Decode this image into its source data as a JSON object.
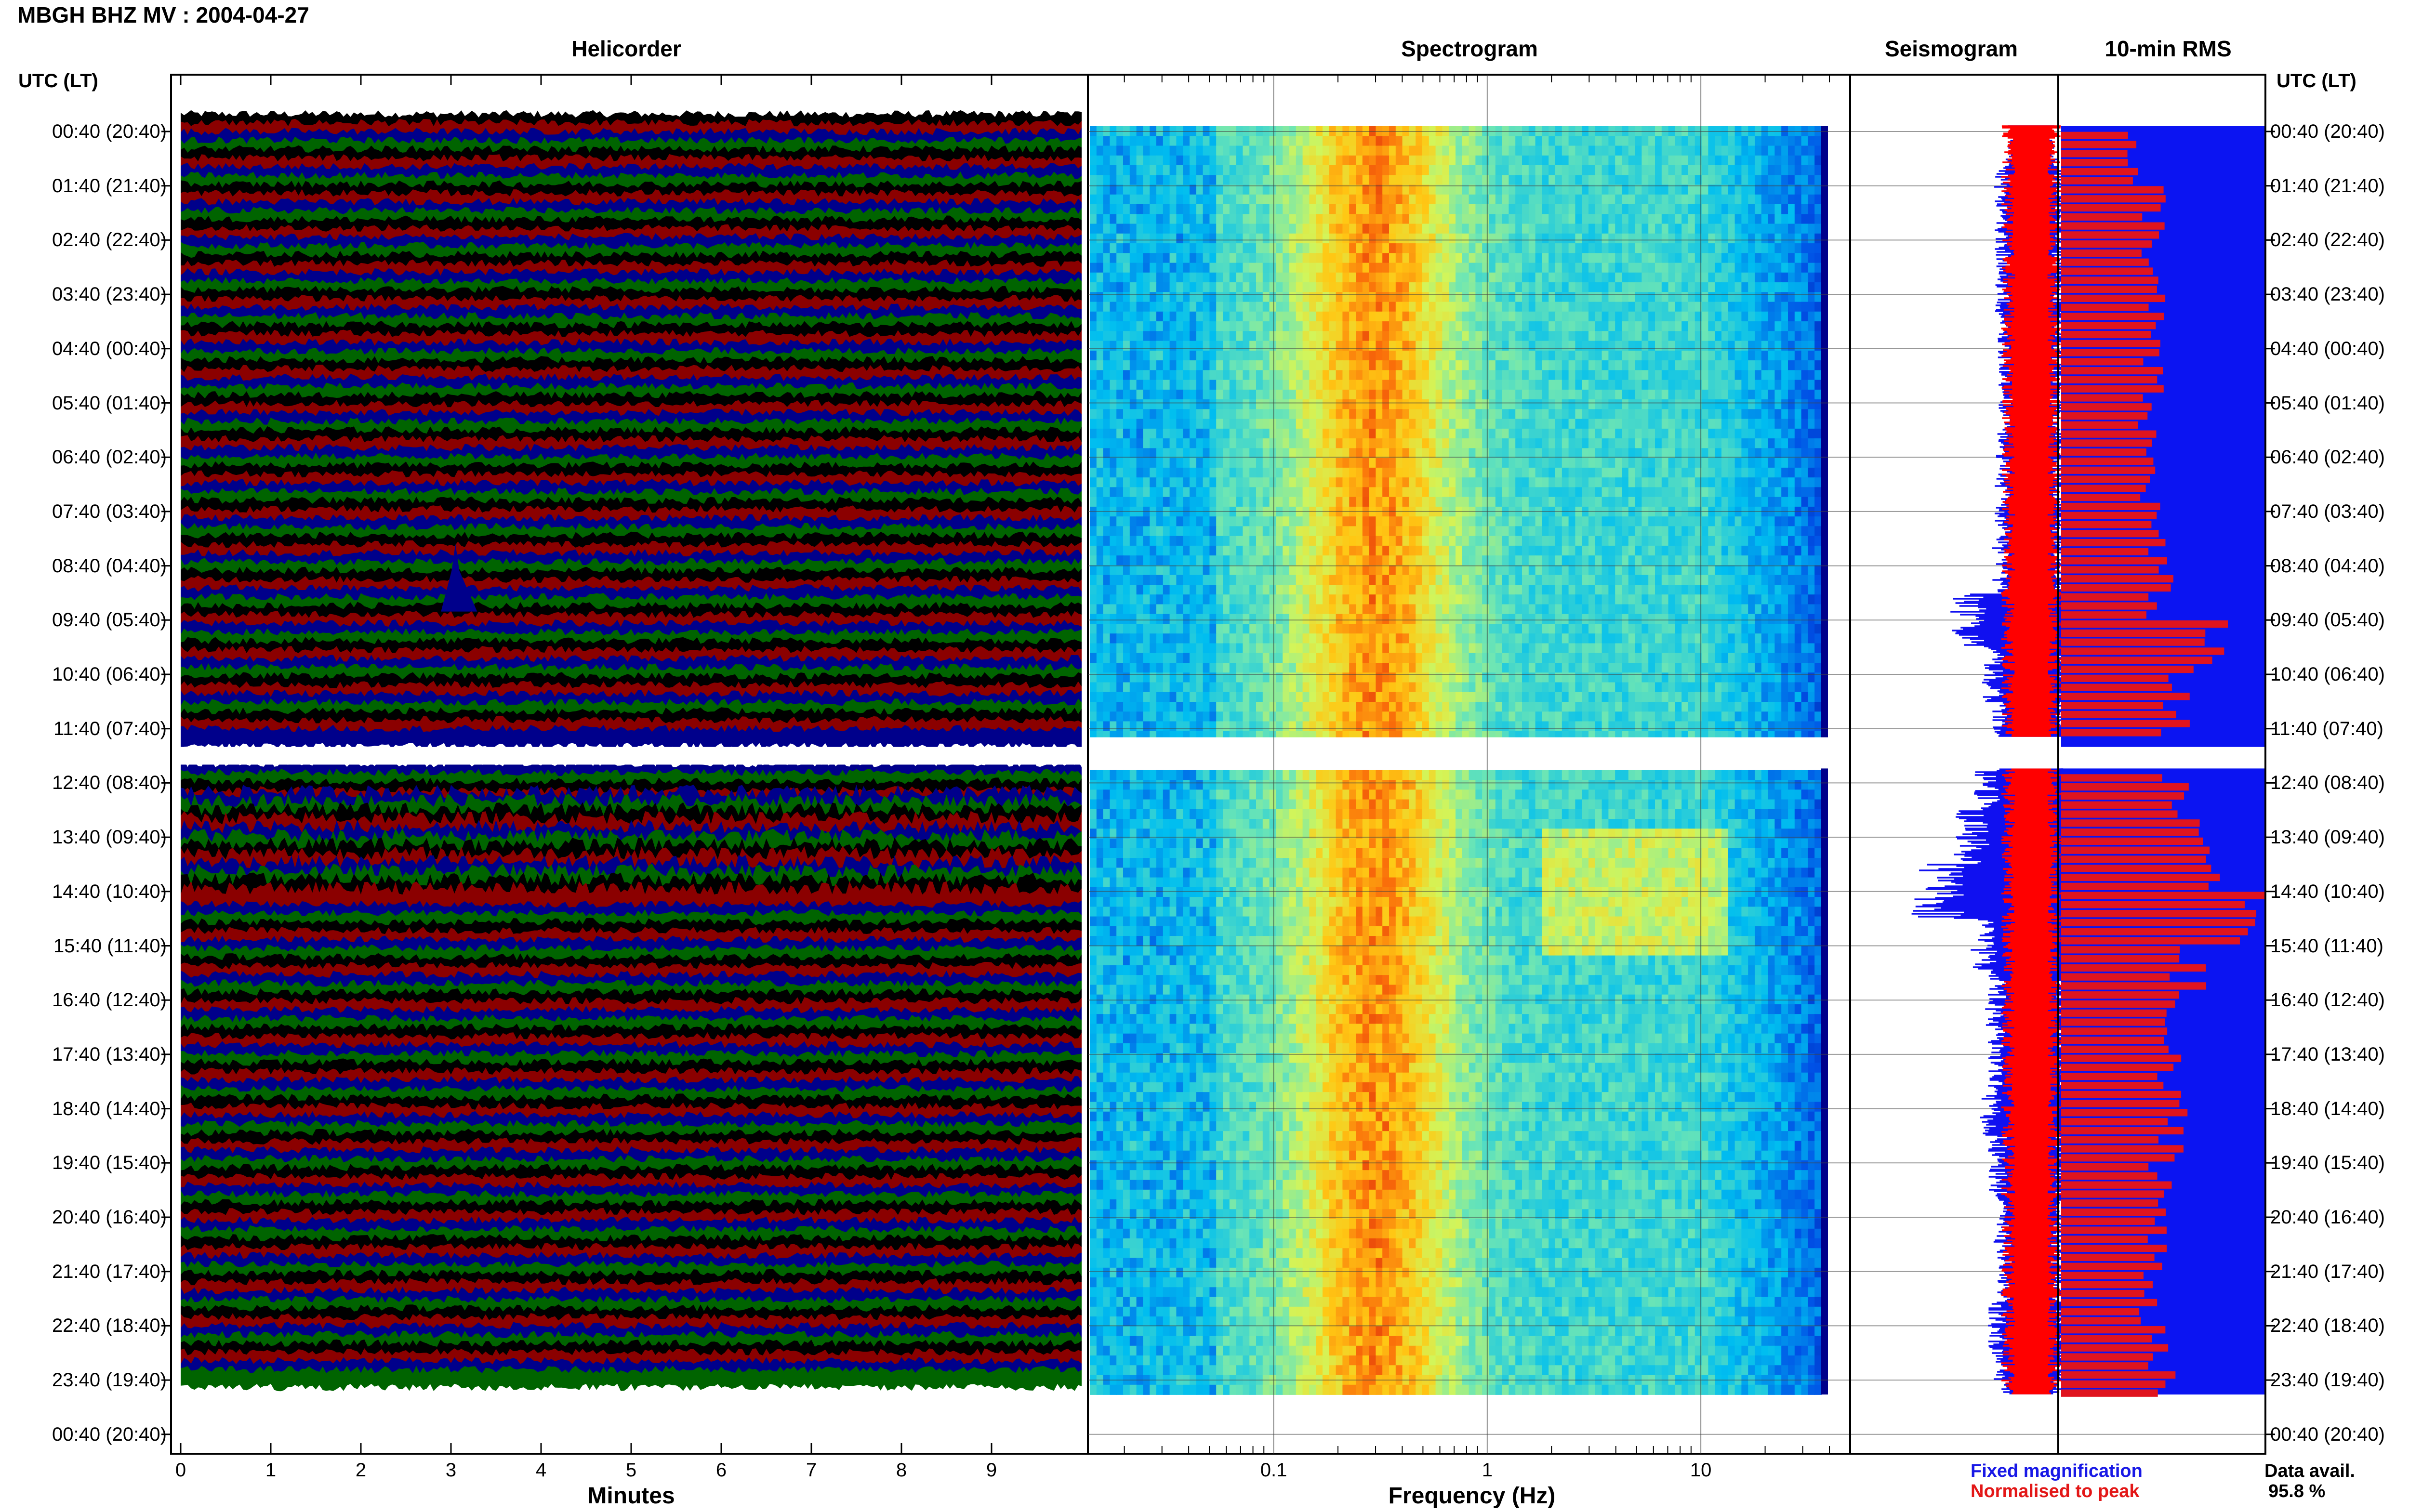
{
  "header": {
    "title": "MBGH BHZ MV : 2004-04-27"
  },
  "panels": {
    "helicorder": "Helicorder",
    "spectrogram": "Spectrogram",
    "seismogram": "Seismogram",
    "rms": "10-min RMS"
  },
  "time_axis": {
    "header": "UTC (LT)",
    "labels": [
      "00:40 (20:40)",
      "01:40 (21:40)",
      "02:40 (22:40)",
      "03:40 (23:40)",
      "04:40 (00:40)",
      "05:40 (01:40)",
      "06:40 (02:40)",
      "07:40 (03:40)",
      "08:40 (04:40)",
      "09:40 (05:40)",
      "10:40 (06:40)",
      "11:40 (07:40)",
      "12:40 (08:40)",
      "13:40 (09:40)",
      "14:40 (10:40)",
      "15:40 (11:40)",
      "16:40 (12:40)",
      "17:40 (13:40)",
      "18:40 (14:40)",
      "19:40 (15:40)",
      "20:40 (16:40)",
      "21:40 (17:40)",
      "22:40 (18:40)",
      "23:40 (19:40)",
      "00:40 (20:40)"
    ]
  },
  "helicorder_axis": {
    "ticks": [
      "0",
      "1",
      "2",
      "3",
      "4",
      "5",
      "6",
      "7",
      "8",
      "9"
    ],
    "xlabel": "Minutes"
  },
  "spectrogram_axis": {
    "ticks": [
      "0.1",
      "1",
      "10"
    ],
    "xlabel": "Frequency (Hz)"
  },
  "legend": {
    "fixed": "Fixed magnification",
    "normalised": "Normalised to peak",
    "avail_label": "Data avail.",
    "avail_value": "95.8 %"
  },
  "colors": {
    "trace_black": "#000000",
    "trace_red": "#8b0000",
    "trace_blue": "#00008b",
    "trace_green": "#006400",
    "seis_blue": "#1010f0",
    "seis_red": "#ff0000"
  },
  "chart_data": {
    "type": "heatmap",
    "date": "2004-04-27",
    "gap": {
      "start": "11:40",
      "end": "12:40"
    },
    "rms_10min": {
      "hours": [
        "00:40",
        "01:40",
        "02:40",
        "03:40",
        "04:40",
        "05:40",
        "06:40",
        "07:40",
        "08:40",
        "09:40",
        "10:40",
        "11:40",
        "12:40",
        "13:40",
        "14:40",
        "15:40",
        "16:40",
        "17:40",
        "18:40",
        "19:40",
        "20:40",
        "21:40",
        "22:40",
        "23:40"
      ],
      "relative_values": [
        0.34,
        0.46,
        0.45,
        0.45,
        0.44,
        0.42,
        0.44,
        0.46,
        0.48,
        0.74,
        0.55,
        0.48,
        0.6,
        0.72,
        0.95,
        0.62,
        0.52,
        0.52,
        0.56,
        0.5,
        0.46,
        0.44,
        0.5,
        0.46
      ]
    },
    "spectrogram_band_peak_hz": 0.3
  }
}
